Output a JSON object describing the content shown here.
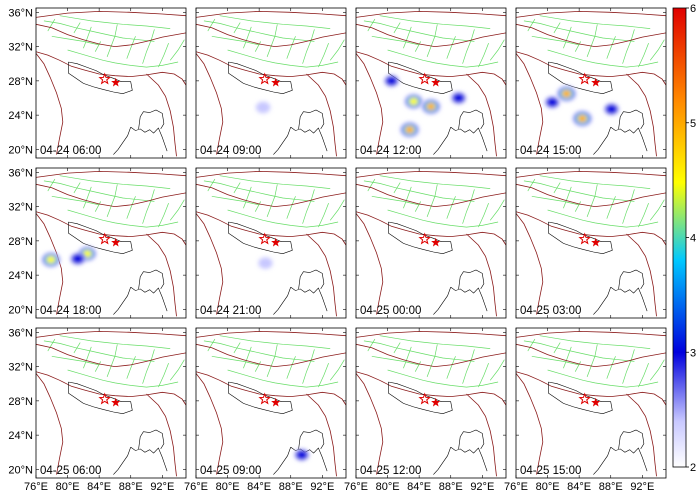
{
  "panels": [
    {
      "label": "04-24 06:00",
      "blobs": []
    },
    {
      "label": "04-24 09:00",
      "blobs": [
        {
          "lon": 84.5,
          "lat": 24.9,
          "intensity": 2.7
        }
      ]
    },
    {
      "label": "04-24 12:00",
      "blobs": [
        {
          "lon": 80.5,
          "lat": 28.0,
          "intensity": 3.0
        },
        {
          "lon": 83.3,
          "lat": 25.6,
          "intensity": 5.0
        },
        {
          "lon": 85.5,
          "lat": 25.0,
          "intensity": 5.2
        },
        {
          "lon": 89.0,
          "lat": 26.0,
          "intensity": 3.2
        },
        {
          "lon": 82.8,
          "lat": 22.3,
          "intensity": 5.3
        }
      ]
    },
    {
      "label": "04-24 15:00",
      "blobs": [
        {
          "lon": 80.6,
          "lat": 25.5,
          "intensity": 3.1
        },
        {
          "lon": 82.4,
          "lat": 26.5,
          "intensity": 5.5
        },
        {
          "lon": 84.4,
          "lat": 23.6,
          "intensity": 5.6
        },
        {
          "lon": 88.1,
          "lat": 24.7,
          "intensity": 3.1
        }
      ]
    },
    {
      "label": "04-24 18:00",
      "blobs": [
        {
          "lon": 77.9,
          "lat": 25.8,
          "intensity": 5.1
        },
        {
          "lon": 82.5,
          "lat": 26.5,
          "intensity": 4.8
        },
        {
          "lon": 81.3,
          "lat": 25.9,
          "intensity": 3.2
        }
      ]
    },
    {
      "label": "04-24 21:00",
      "blobs": [
        {
          "lon": 84.8,
          "lat": 25.4,
          "intensity": 2.6
        },
        {
          "lon": 79.7,
          "lat": 24.6,
          "intensity": 2.3
        }
      ]
    },
    {
      "label": "04-25 00:00",
      "blobs": []
    },
    {
      "label": "04-25 03:00",
      "blobs": []
    },
    {
      "label": "04-25 06:00",
      "blobs": []
    },
    {
      "label": "04-25 09:00",
      "blobs": [
        {
          "lon": 89.4,
          "lat": 21.7,
          "intensity": 3.0
        }
      ]
    },
    {
      "label": "04-25 12:00",
      "blobs": [
        {
          "lon": 81.8,
          "lat": 21.8,
          "intensity": 2.2
        }
      ]
    },
    {
      "label": "04-25 15:00",
      "blobs": []
    }
  ],
  "x_ticks": [
    "76°E",
    "80°E",
    "84°E",
    "88°E",
    "92°E"
  ],
  "y_ticks": [
    "36°N",
    "32°N",
    "28°N",
    "24°N",
    "20°N"
  ],
  "colorbar": {
    "min": 2,
    "max": 6,
    "ticks": [
      "6",
      "5",
      "4",
      "3",
      "2"
    ]
  },
  "epicenters": [
    {
      "name": "mainshock",
      "lon": 84.7,
      "lat": 28.2
    },
    {
      "name": "aftershock",
      "lon": 86.1,
      "lat": 27.8
    }
  ],
  "colors": {
    "fault": "#66dd66",
    "plate_boundary": "#8b1a1a",
    "country": "#000000",
    "star": "#e00000"
  }
}
